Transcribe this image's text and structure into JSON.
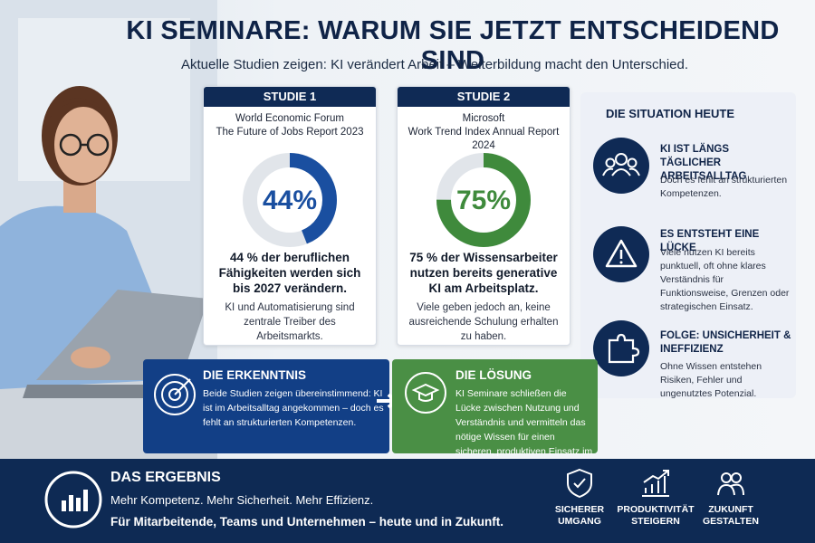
{
  "header": {
    "title": "KI SEMINARE: WARUM SIE JETZT ENTSCHEIDEND SIND",
    "subtitle": "Aktuelle Studien zeigen: KI verändert Arbeit – Weiterbildung macht den Unterschied."
  },
  "studies": [
    {
      "tag": "STUDIE 1",
      "source": [
        "World Economic Forum",
        "The Future of Jobs Report 2023"
      ],
      "value": 44,
      "value_label": "44%",
      "headline": "44 % der beruflichen Fähigkeiten werden sich bis 2027 verändern.",
      "text": "KI und Automatisierung sind zentrale Treiber des Arbeitsmarkts.",
      "color": "#1a4fa0"
    },
    {
      "tag": "STUDIE 2",
      "source": [
        "Microsoft",
        "Work Trend Index Annual Report 2024"
      ],
      "value": 75,
      "value_label": "75%",
      "headline": "75 % der Wissensarbeiter nutzen bereits generative KI am Arbeitsplatz.",
      "text": "Viele geben jedoch an, keine ausreichende Schulung erhalten zu haben.",
      "color": "#3f8a3c"
    }
  ],
  "situation": {
    "title": "DIE SITUATION HEUTE",
    "items": [
      {
        "title": "KI IST LÄNGS TÄGLICHER ARBEITSALLTAG",
        "text": "Doch es fehlt an strukturierten Kompetenzen."
      },
      {
        "title": "ES ENTSTEHT EINE LÜCKE",
        "text": "Viele nutzen KI bereits punktuell, oft ohne klares Verständnis für Funktionsweise, Grenzen oder strategischen Einsatz."
      },
      {
        "title": "FOLGE: UNSICHERHEIT & INEFFIZIENZ",
        "text": "Ohne Wissen entstehen Risiken, Fehler und ungenutztes Potenzial."
      }
    ]
  },
  "insight": {
    "title": "DIE ERKENNTNIS",
    "text": "Beide Studien zeigen übereinstimmend: KI ist im Arbeitsalltag angekommen – doch es fehlt an strukturierten Kompetenzen."
  },
  "solution": {
    "title": "DIE LÖSUNG",
    "text": "KI Seminare schließen die Lücke zwischen Nutzung und Verständnis und vermitteln das nötige Wissen für einen sicheren, produktiven Einsatz im Berufsalltag."
  },
  "footer": {
    "title": "DAS ERGEBNIS",
    "line1": "Mehr Kompetenz. Mehr Sicherheit. Mehr Effizienz.",
    "line2": "Für Mitarbeitende, Teams und Unternehmen – heute und in Zukunft.",
    "icons": [
      "SICHERER UMGANG",
      "PRODUKTIVITÄT STEIGERN",
      "ZUKUNFT GESTALTEN"
    ]
  }
}
